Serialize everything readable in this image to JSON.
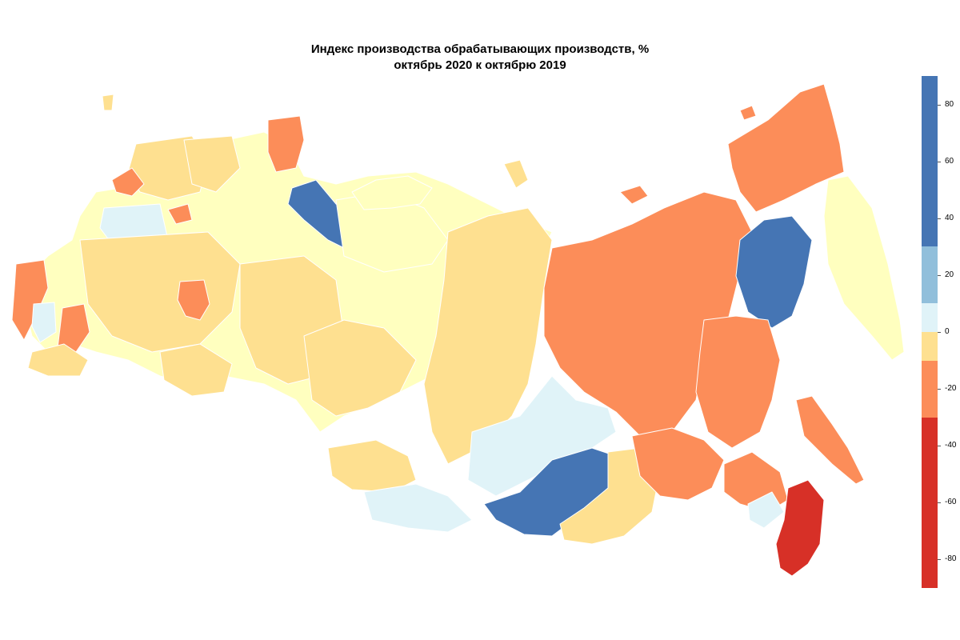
{
  "title": {
    "line1": "Индекс производства обрабатывающих производств, %",
    "line2": "октябрь 2020 к октябрю 2019"
  },
  "legend": {
    "max": 90,
    "min": -90,
    "bins": [
      {
        "from": 30,
        "to": 90,
        "color": "#4575b4"
      },
      {
        "from": 10,
        "to": 30,
        "color": "#91bfdb"
      },
      {
        "from": 0,
        "to": 10,
        "color": "#e0f3f8"
      },
      {
        "from": -10,
        "to": 0,
        "color": "#fee090"
      },
      {
        "from": -30,
        "to": -10,
        "color": "#fc8d59"
      },
      {
        "from": -90,
        "to": -30,
        "color": "#d73027"
      }
    ],
    "ticks": [
      "80",
      "60",
      "40",
      "20",
      "0",
      "-20",
      "-40",
      "-60",
      "-80"
    ],
    "tick_values": [
      80,
      60,
      40,
      20,
      0,
      -20,
      -40,
      -60,
      -80
    ]
  },
  "colors": {
    "very_high": "#4575b4",
    "high": "#91bfdb",
    "slight_positive": "#e0f3f8",
    "slight_negative": "#fee090",
    "light_yellow": "#ffffbf",
    "negative": "#fc8d59",
    "very_negative": "#d73027"
  }
}
